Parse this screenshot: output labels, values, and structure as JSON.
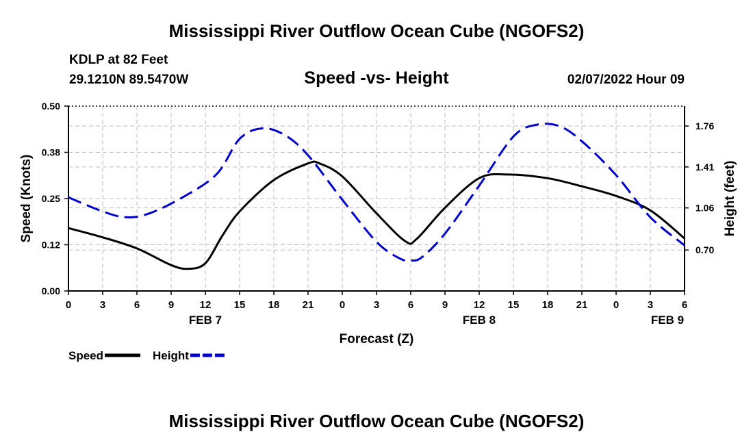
{
  "header": {
    "title": "Mississippi River Outflow Ocean Cube (NGOFS2)",
    "station": "KDLP at 82 Feet",
    "coords": "29.1210N  89.5470W",
    "subtitle": "Speed -vs- Height",
    "datetime": "02/07/2022 Hour 09",
    "bottom_title": "Mississippi River Outflow Ocean Cube (NGOFS2)"
  },
  "chart_data": {
    "type": "line",
    "x_unit": "forecast hours from 00Z Feb 7",
    "xlim": [
      0,
      54
    ],
    "x_ticks": [
      {
        "h": 0,
        "label": "0"
      },
      {
        "h": 3,
        "label": "3"
      },
      {
        "h": 6,
        "label": "6"
      },
      {
        "h": 9,
        "label": "9"
      },
      {
        "h": 12,
        "label": "12"
      },
      {
        "h": 15,
        "label": "15"
      },
      {
        "h": 18,
        "label": "18"
      },
      {
        "h": 21,
        "label": "21"
      },
      {
        "h": 24,
        "label": "0"
      },
      {
        "h": 27,
        "label": "3"
      },
      {
        "h": 30,
        "label": "6"
      },
      {
        "h": 33,
        "label": "9"
      },
      {
        "h": 36,
        "label": "12"
      },
      {
        "h": 39,
        "label": "15"
      },
      {
        "h": 42,
        "label": "18"
      },
      {
        "h": 45,
        "label": "21"
      },
      {
        "h": 48,
        "label": "0"
      },
      {
        "h": 51,
        "label": "3"
      },
      {
        "h": 54,
        "label": "6"
      }
    ],
    "date_labels": [
      {
        "h": 12,
        "label": "FEB 7"
      },
      {
        "h": 36,
        "label": "FEB 8"
      },
      {
        "h": 52.5,
        "label": "FEB 9"
      }
    ],
    "xlabel": "Forecast (Z)",
    "y_left": {
      "label": "Speed (Knots)",
      "lim": [
        0,
        0.5
      ],
      "ticks": [
        0.0,
        0.125,
        0.25,
        0.375,
        0.5
      ],
      "tick_labels": [
        "0.00",
        "0.12",
        "0.25",
        "0.38",
        "0.50"
      ]
    },
    "y_right": {
      "label": "Height (feet)",
      "lim": [
        0.35,
        1.93
      ],
      "ticks": [
        0.7,
        1.06,
        1.41,
        1.76
      ],
      "tick_labels": [
        "0.70",
        "1.06",
        "1.41",
        "1.76"
      ]
    },
    "grid": true,
    "series": [
      {
        "name": "Speed",
        "axis": "left",
        "style": "solid",
        "color": "#000000",
        "x": [
          0,
          3,
          6,
          9,
          10.5,
          12,
          13.5,
          15,
          18,
          21,
          22,
          24,
          27,
          29.5,
          30.5,
          33,
          36,
          38.5,
          42,
          45,
          48,
          51,
          54
        ],
        "y": [
          0.17,
          0.145,
          0.115,
          0.07,
          0.06,
          0.075,
          0.15,
          0.215,
          0.3,
          0.345,
          0.345,
          0.31,
          0.21,
          0.135,
          0.14,
          0.225,
          0.305,
          0.315,
          0.305,
          0.283,
          0.257,
          0.218,
          0.142
        ]
      },
      {
        "name": "Height",
        "axis": "right",
        "style": "dashed",
        "color": "#0000cc",
        "x": [
          0,
          3,
          5,
          7,
          10,
          13,
          15,
          17,
          19,
          21,
          24,
          27,
          29,
          30,
          31,
          33,
          36,
          39,
          41,
          43,
          45,
          48,
          51,
          54
        ],
        "y": [
          1.15,
          1.03,
          0.98,
          1.01,
          1.15,
          1.35,
          1.65,
          1.74,
          1.68,
          1.51,
          1.13,
          0.77,
          0.63,
          0.61,
          0.64,
          0.84,
          1.25,
          1.67,
          1.77,
          1.76,
          1.63,
          1.34,
          0.98,
          0.74
        ]
      }
    ],
    "legend": [
      {
        "name": "Speed",
        "label": "Speed",
        "style": "solid",
        "color": "#000000"
      },
      {
        "name": "Height",
        "label": "Height",
        "style": "dashed",
        "color": "#0000cc"
      }
    ],
    "legend_position": "bottom-left"
  }
}
